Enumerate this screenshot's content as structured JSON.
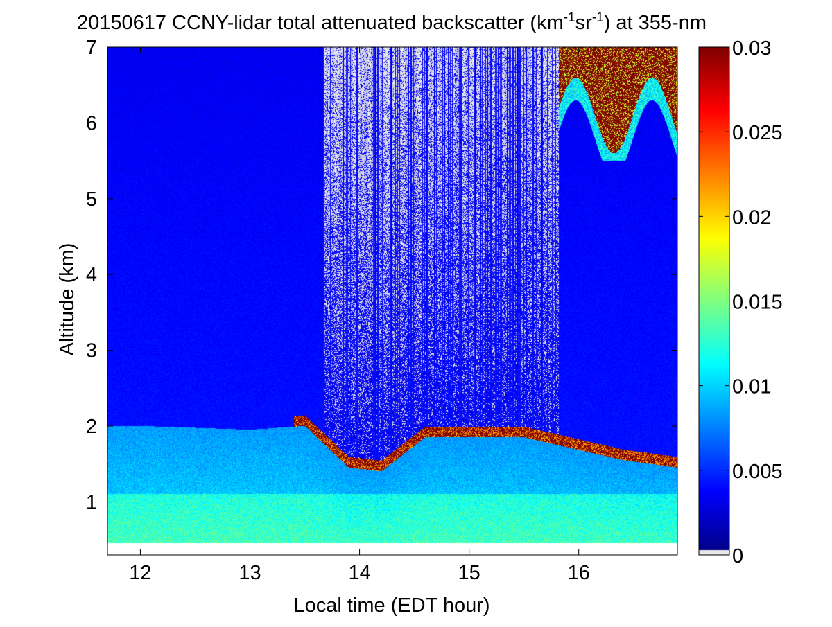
{
  "chart_data": {
    "type": "heatmap",
    "title": {
      "main": "20150617 CCNY-lidar total attenuated backscatter (km",
      "sup1": "-1",
      "mid": "sr",
      "sup2": "-1",
      "tail": ") at 355-nm"
    },
    "xlabel": "Local time (EDT hour)",
    "ylabel": "Altitude (km)",
    "xlim": [
      11.7,
      16.9
    ],
    "ylim": [
      0.3,
      7
    ],
    "xticks": [
      12,
      13,
      14,
      15,
      16
    ],
    "yticks": [
      1,
      2,
      3,
      4,
      5,
      6,
      7
    ],
    "data_range": {
      "x": [
        11.7,
        16.9
      ],
      "y": [
        0.45,
        7
      ]
    },
    "colorbar": {
      "colormap": "jet",
      "range": [
        0,
        0.03
      ],
      "ticks": [
        "0",
        "0.005",
        "0.01",
        "0.015",
        "0.02",
        "0.025",
        "0.03"
      ],
      "nodata_color": "#e8e8e8"
    },
    "features": {
      "boundary_layer_top_km": [
        {
          "time": 12.0,
          "top": 2.05
        },
        {
          "time": 13.0,
          "top": 2.0
        },
        {
          "time": 13.5,
          "top": 2.05
        },
        {
          "time": 13.9,
          "top": 1.5
        },
        {
          "time": 14.2,
          "top": 1.45
        },
        {
          "time": 14.6,
          "top": 1.9
        },
        {
          "time": 15.0,
          "top": 1.9
        },
        {
          "time": 15.5,
          "top": 1.9
        },
        {
          "time": 15.8,
          "top": 1.8
        },
        {
          "time": 16.4,
          "top": 1.6
        },
        {
          "time": 16.9,
          "top": 1.5
        }
      ],
      "clear_sky_gap_hours": [
        13.67,
        15.82
      ],
      "high_cloud": {
        "time": [
          15.82,
          16.9
        ],
        "altitude_km": [
          5.5,
          7
        ]
      }
    }
  }
}
